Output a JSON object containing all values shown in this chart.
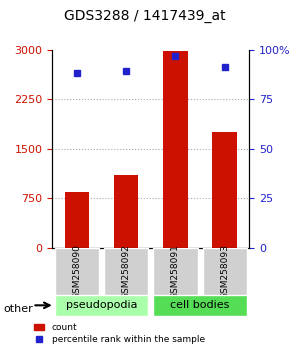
{
  "title": "GDS3288 / 1417439_at",
  "categories": [
    "GSM258090",
    "GSM258092",
    "GSM258091",
    "GSM258093"
  ],
  "bar_values": [
    850,
    1100,
    2980,
    1750
  ],
  "percentile_values": [
    88,
    89,
    97,
    91
  ],
  "bar_color": "#cc1100",
  "percentile_color": "#2222cc",
  "ylim_left": [
    0,
    3000
  ],
  "ylim_right": [
    0,
    100
  ],
  "yticks_left": [
    0,
    750,
    1500,
    2250,
    3000
  ],
  "ytick_labels_left": [
    "0",
    "750",
    "1500",
    "2250",
    "3000"
  ],
  "yticks_right": [
    0,
    25,
    50,
    75,
    100
  ],
  "ytick_labels_right": [
    "0",
    "25",
    "50",
    "75",
    "100%"
  ],
  "group_labels": [
    "pseudopodia",
    "cell bodies"
  ],
  "group_colors": [
    "#aaffaa",
    "#55dd55"
  ],
  "other_label": "other",
  "legend_count_label": "count",
  "legend_pct_label": "percentile rank within the sample",
  "grid_color": "#aaaaaa",
  "bar_width": 0.5,
  "left_label_color": "#cc1100",
  "right_label_color": "#2222cc"
}
